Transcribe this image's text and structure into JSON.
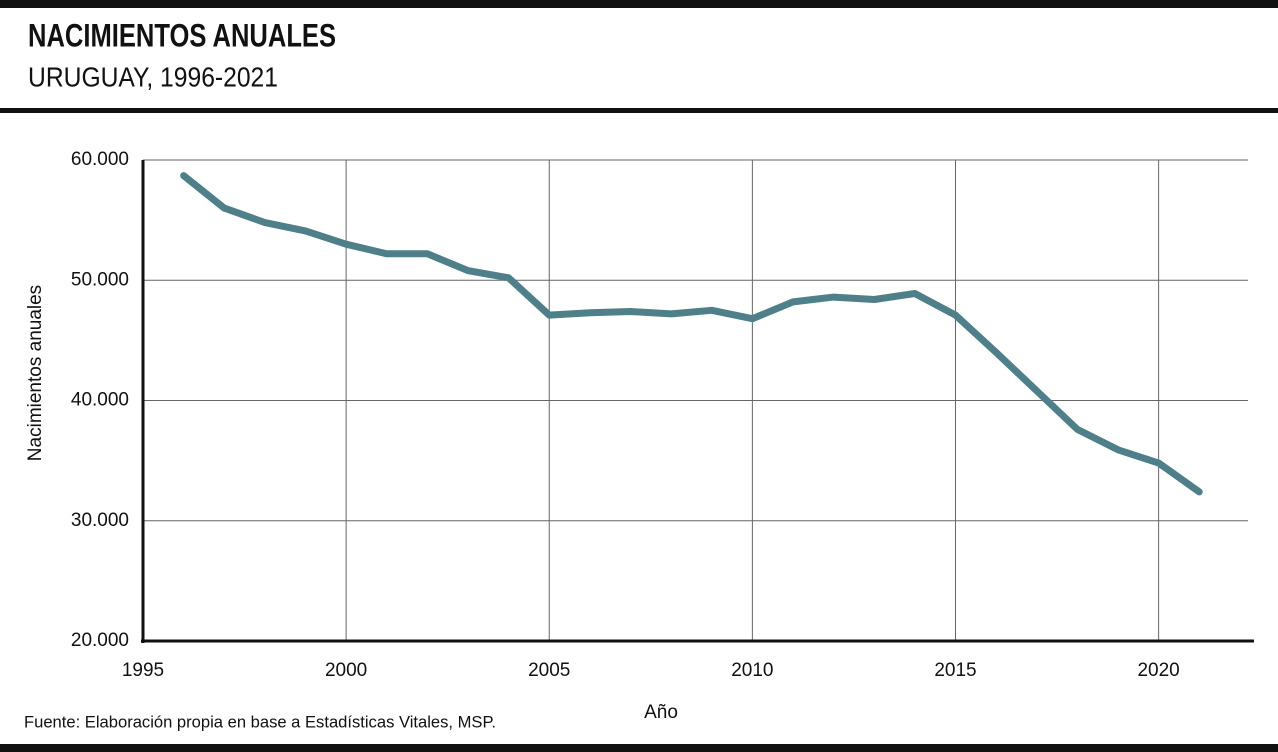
{
  "chart_data": {
    "type": "line",
    "title": "NACIMIENTOS ANUALES",
    "subtitle": "URUGUAY, 1996-2021",
    "x_label": "Año",
    "y_label": "Nacimientos anuales",
    "source": "Fuente: Elaboración propia en base a Estadísticas Vitales, MSP.",
    "x": [
      1996,
      1997,
      1998,
      1999,
      2000,
      2001,
      2002,
      2003,
      2004,
      2005,
      2006,
      2007,
      2008,
      2009,
      2010,
      2011,
      2012,
      2013,
      2014,
      2015,
      2016,
      2017,
      2018,
      2019,
      2020,
      2021
    ],
    "series": [
      {
        "name": "Nacimientos anuales",
        "color": "#4f7f88",
        "values": [
          58700,
          56000,
          54800,
          54100,
          53000,
          52200,
          52200,
          50800,
          50200,
          47100,
          47300,
          47400,
          47200,
          47500,
          46800,
          48200,
          48600,
          48400,
          48900,
          47100,
          44000,
          40800,
          37600,
          35900,
          34800,
          32400
        ]
      }
    ],
    "xlim": [
      1995,
      2022.2
    ],
    "xticks": [
      1995,
      2000,
      2005,
      2010,
      2015,
      2020
    ],
    "ylim": [
      20000,
      60000
    ],
    "yticks": [
      {
        "value": 20000,
        "label": "20.000"
      },
      {
        "value": 30000,
        "label": "30.000"
      },
      {
        "value": 40000,
        "label": "40.000"
      },
      {
        "value": 50000,
        "label": "50.000"
      },
      {
        "value": 60000,
        "label": "60.000"
      }
    ],
    "grid": true
  }
}
